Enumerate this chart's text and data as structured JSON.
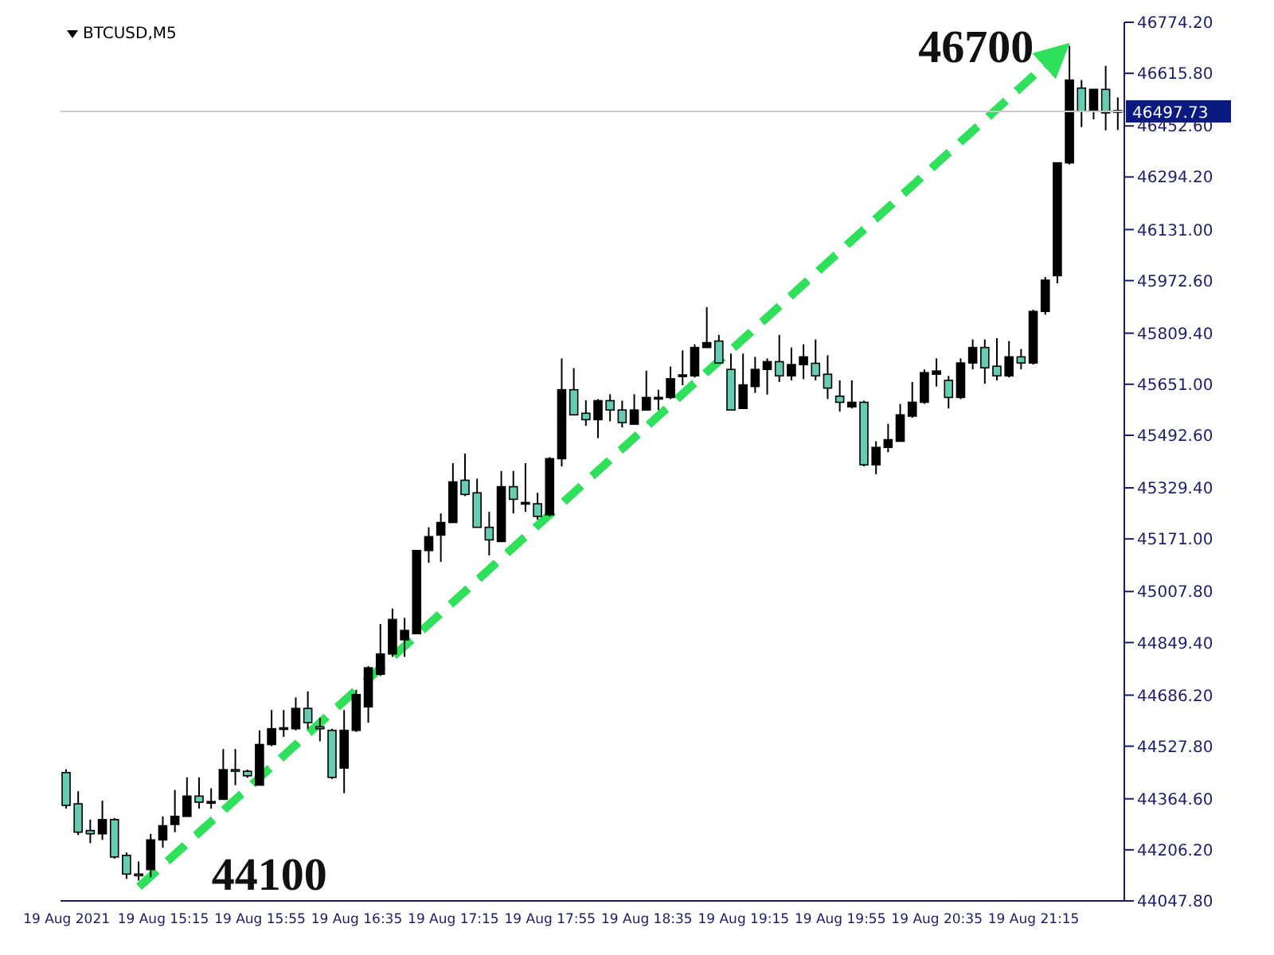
{
  "chart_data": {
    "type": "candlestick",
    "title": "BTCUSD,M5",
    "categories": [
      "19 Aug 2021",
      null,
      null,
      null,
      null,
      null,
      null,
      null,
      "19 Aug 15:15",
      null,
      null,
      null,
      null,
      null,
      null,
      null,
      "19 Aug 15:55",
      null,
      null,
      null,
      null,
      null,
      null,
      null,
      "19 Aug 16:35",
      null,
      null,
      null,
      null,
      null,
      null,
      null,
      "19 Aug 17:15",
      null,
      null,
      null,
      null,
      null,
      null,
      null,
      "19 Aug 17:55",
      null,
      null,
      null,
      null,
      null,
      null,
      null,
      "19 Aug 18:35",
      null,
      null,
      null,
      null,
      null,
      null,
      null,
      "19 Aug 19:15",
      null,
      null,
      null,
      null,
      null,
      null,
      null,
      "19 Aug 19:55",
      null,
      null,
      null,
      null,
      null,
      null,
      null,
      "19 Aug 20:35",
      null,
      null,
      null,
      null,
      null,
      null,
      null,
      "19 Aug 21:15",
      null,
      null,
      null,
      null,
      null,
      null,
      null
    ],
    "ohlc": [
      [
        44446,
        44456,
        44334,
        44344
      ],
      [
        44349,
        44388,
        44252,
        44261
      ],
      [
        44266,
        44300,
        44227,
        44256
      ],
      [
        44256,
        44359,
        44237,
        44300
      ],
      [
        44300,
        44305,
        44179,
        44184
      ],
      [
        44189,
        44198,
        44116,
        44131
      ],
      [
        44131,
        44170,
        44111,
        44126
      ],
      [
        44145,
        44256,
        44121,
        44237
      ],
      [
        44237,
        44310,
        44213,
        44281
      ],
      [
        44285,
        44392,
        44261,
        44310
      ],
      [
        44310,
        44431,
        44310,
        44373
      ],
      [
        44373,
        44431,
        44334,
        44354
      ],
      [
        44352,
        44397,
        44334,
        44356
      ],
      [
        44363,
        44519,
        44363,
        44455
      ],
      [
        44455,
        44519,
        44407,
        44450
      ],
      [
        44450,
        44455,
        44430,
        44436
      ],
      [
        44407,
        44577,
        44407,
        44533
      ],
      [
        44533,
        44640,
        44528,
        44582
      ],
      [
        44582,
        44640,
        44557,
        44585
      ],
      [
        44582,
        44679,
        44577,
        44645
      ],
      [
        44645,
        44698,
        44582,
        44601
      ],
      [
        44588,
        44616,
        44543,
        44582
      ],
      [
        44577,
        44582,
        44426,
        44431
      ],
      [
        44460,
        44640,
        44382,
        44577
      ],
      [
        44577,
        44703,
        44572,
        44688
      ],
      [
        44650,
        44776,
        44601,
        44771
      ],
      [
        44751,
        44907,
        44746,
        44814
      ],
      [
        44814,
        44955,
        44805,
        44921
      ],
      [
        44858,
        44926,
        44805,
        44887
      ],
      [
        44877,
        45135,
        44877,
        45135
      ],
      [
        45135,
        45207,
        45097,
        45178
      ],
      [
        45183,
        45250,
        45100,
        45222
      ],
      [
        45222,
        45406,
        45222,
        45348
      ],
      [
        45353,
        45436,
        45304,
        45309
      ],
      [
        45314,
        45358,
        45207,
        45207
      ],
      [
        45207,
        45255,
        45120,
        45168
      ],
      [
        45163,
        45382,
        45163,
        45333
      ],
      [
        45333,
        45382,
        45250,
        45294
      ],
      [
        45280,
        45406,
        45255,
        45284
      ],
      [
        45280,
        45314,
        45231,
        45241
      ],
      [
        45246,
        45425,
        45241,
        45420
      ],
      [
        45420,
        45731,
        45396,
        45634
      ],
      [
        45634,
        45701,
        45556,
        45556
      ],
      [
        45561,
        45601,
        45522,
        45541
      ],
      [
        45541,
        45605,
        45484,
        45600
      ],
      [
        45600,
        45620,
        45536,
        45571
      ],
      [
        45571,
        45600,
        45517,
        45532
      ],
      [
        45527,
        45620,
        45527,
        45571
      ],
      [
        45571,
        45693,
        45571,
        45610
      ],
      [
        45605,
        45634,
        45571,
        45610
      ],
      [
        45610,
        45706,
        45605,
        45668
      ],
      [
        45677,
        45756,
        45648,
        45680
      ],
      [
        45677,
        45775,
        45672,
        45765
      ],
      [
        45765,
        45890,
        45765,
        45780
      ],
      [
        45785,
        45804,
        45717,
        45717
      ],
      [
        45697,
        45746,
        45571,
        45571
      ],
      [
        45576,
        45746,
        45576,
        45649
      ],
      [
        45644,
        45736,
        45624,
        45697
      ],
      [
        45697,
        45731,
        45619,
        45721
      ],
      [
        45721,
        45804,
        45658,
        45677
      ],
      [
        45677,
        45765,
        45663,
        45712
      ],
      [
        45712,
        45775,
        45667,
        45736
      ],
      [
        45716,
        45790,
        45663,
        45677
      ],
      [
        45682,
        45741,
        45605,
        45639
      ],
      [
        45614,
        45663,
        45566,
        45595
      ],
      [
        45581,
        45663,
        45576,
        45595
      ],
      [
        45595,
        45600,
        45396,
        45401
      ],
      [
        45401,
        45474,
        45372,
        45455
      ],
      [
        45455,
        45528,
        45440,
        45479
      ],
      [
        45474,
        45590,
        45474,
        45556
      ],
      [
        45552,
        45658,
        45547,
        45595
      ],
      [
        45595,
        45697,
        45590,
        45687
      ],
      [
        45682,
        45731,
        45644,
        45692
      ],
      [
        45663,
        45677,
        45576,
        45610
      ],
      [
        45610,
        45731,
        45605,
        45717
      ],
      [
        45717,
        45790,
        45697,
        45765
      ],
      [
        45765,
        45790,
        45653,
        45702
      ],
      [
        45707,
        45794,
        45663,
        45677
      ],
      [
        45677,
        45785,
        45672,
        45736
      ],
      [
        45736,
        45760,
        45697,
        45717
      ],
      [
        45717,
        45882,
        45712,
        45877
      ],
      [
        45877,
        45984,
        45867,
        45974
      ],
      [
        45988,
        46338,
        45964,
        46338
      ],
      [
        46338,
        46701,
        46333,
        46595
      ],
      [
        46570,
        46595,
        46449,
        46498
      ],
      [
        46498,
        46566,
        46473,
        46566
      ],
      [
        46566,
        46639,
        46439,
        46493
      ],
      [
        46500,
        46541,
        46440,
        46497.73
      ]
    ],
    "colors": [
      "#66cdb4",
      "#66cdb4",
      "#66cdb4",
      "#000000",
      "#66cdb4",
      "#66cdb4",
      "#66cdb4",
      "#000000",
      "#000000",
      "#000000",
      "#000000",
      "#66cdb4",
      "#000000",
      "#000000",
      "#66cdb4",
      "#66cdb4",
      "#000000",
      "#000000",
      "#000000",
      "#000000",
      "#66cdb4",
      "#66cdb4",
      "#66cdb4",
      "#000000",
      "#000000",
      "#000000",
      "#000000",
      "#000000",
      "#000000",
      "#000000",
      "#000000",
      "#000000",
      "#000000",
      "#66cdb4",
      "#66cdb4",
      "#66cdb4",
      "#000000",
      "#66cdb4",
      "#000000",
      "#66cdb4",
      "#000000",
      "#000000",
      "#66cdb4",
      "#66cdb4",
      "#000000",
      "#66cdb4",
      "#66cdb4",
      "#000000",
      "#000000",
      "#000000",
      "#000000",
      "#000000",
      "#000000",
      "#000000",
      "#66cdb4",
      "#66cdb4",
      "#000000",
      "#000000",
      "#000000",
      "#66cdb4",
      "#000000",
      "#000000",
      "#66cdb4",
      "#66cdb4",
      "#66cdb4",
      "#000000",
      "#66cdb4",
      "#000000",
      "#000000",
      "#000000",
      "#000000",
      "#000000",
      "#000000",
      "#66cdb4",
      "#000000",
      "#000000",
      "#66cdb4",
      "#66cdb4",
      "#000000",
      "#66cdb4",
      "#000000",
      "#000000",
      "#000000",
      "#000000",
      "#66cdb4",
      "#000000",
      "#66cdb4",
      "#66cdb4"
    ],
    "ylim": [
      44047.8,
      46774.2
    ],
    "yticks": [
      {
        "value": 44047.8,
        "label": "44047.80"
      },
      {
        "value": 44206.2,
        "label": "44206.20"
      },
      {
        "value": 44364.6,
        "label": "44364.60"
      },
      {
        "value": 44527.8,
        "label": "44527.80"
      },
      {
        "value": 44686.2,
        "label": "44686.20"
      },
      {
        "value": 44849.4,
        "label": "44849.40"
      },
      {
        "value": 45007.8,
        "label": "45007.80"
      },
      {
        "value": 45171,
        "label": "45171.00"
      },
      {
        "value": 45329.4,
        "label": "45329.40"
      },
      {
        "value": 45492.6,
        "label": "45492.60"
      },
      {
        "value": 45651,
        "label": "45651.00"
      },
      {
        "value": 45809.4,
        "label": "45809.40"
      },
      {
        "value": 45972.6,
        "label": "45972.60"
      },
      {
        "value": 46131,
        "label": "46131.00"
      },
      {
        "value": 46294.2,
        "label": "46294.20"
      },
      {
        "value": 46452.6,
        "label": "46452.60"
      },
      {
        "value": 46615.8,
        "label": "46615.80"
      },
      {
        "value": 46774.2,
        "label": "46774.20"
      }
    ],
    "ref_lines": [
      {
        "axis": "y",
        "value": 46497.73,
        "label": "46497.73",
        "color": "#c8c8c8"
      }
    ],
    "annotations": [
      "44100",
      "46700"
    ]
  }
}
